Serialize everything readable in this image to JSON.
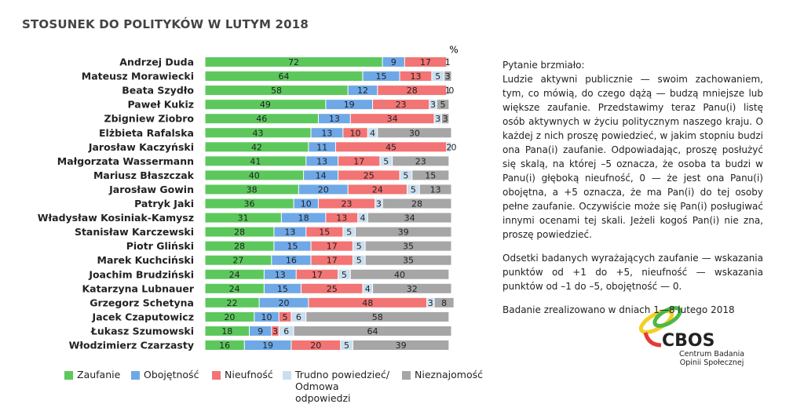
{
  "chart_data": {
    "type": "stacked-bar-horizontal",
    "title": "STOSUNEK DO POLITYKÓW  W  LUTYM 2018",
    "unit": "%",
    "categories": [
      "Andrzej Duda",
      "Mateusz Morawiecki",
      "Beata Szydło",
      "Paweł Kukiz",
      "Zbigniew Ziobro",
      "Elżbieta Rafalska",
      "Jarosław Kaczyński",
      "Małgorzata Wassermann",
      "Mariusz Błaszczak",
      "Jarosław Gowin",
      "Patryk Jaki",
      "Władysław Kosiniak-Kamysz",
      "Stanisław Karczewski",
      "Piotr Gliński",
      "Marek Kuchciński",
      "Joachim Brudziński",
      "Katarzyna Lubnauer",
      "Grzegorz Schetyna",
      "Jacek Czaputowicz",
      "Łukasz Szumowski",
      "Włodzimierz Czarzasty"
    ],
    "xlim": [
      0,
      100
    ],
    "series": [
      {
        "name": "Zaufanie",
        "color": "#5cc85c",
        "values": [
          72,
          64,
          58,
          49,
          46,
          43,
          42,
          41,
          40,
          38,
          36,
          31,
          28,
          28,
          27,
          24,
          24,
          22,
          20,
          18,
          16
        ]
      },
      {
        "name": "Obojętność",
        "color": "#6fa8e6",
        "values": [
          9,
          15,
          12,
          19,
          13,
          13,
          11,
          13,
          14,
          20,
          10,
          18,
          13,
          15,
          16,
          13,
          15,
          20,
          10,
          9,
          19
        ]
      },
      {
        "name": "Nieufność",
        "color": "#f27474",
        "values": [
          17,
          13,
          28,
          23,
          34,
          10,
          45,
          17,
          25,
          24,
          23,
          13,
          15,
          17,
          17,
          17,
          25,
          48,
          5,
          3,
          20
        ]
      },
      {
        "name": "Trudno powiedzieć/ Odmowa odpowiedzi",
        "color": "#c9dff0",
        "values": [
          1,
          5,
          1,
          3,
          3,
          4,
          2,
          5,
          5,
          5,
          3,
          4,
          5,
          5,
          5,
          5,
          4,
          3,
          6,
          6,
          5
        ]
      },
      {
        "name": "Nieznajomość",
        "color": "#a6a6a6",
        "values": [
          null,
          3,
          0,
          5,
          3,
          30,
          0,
          23,
          15,
          13,
          28,
          34,
          39,
          35,
          35,
          40,
          32,
          8,
          58,
          64,
          39
        ]
      }
    ]
  },
  "question_label": "Pytanie brzmiało:",
  "question_text": "Ludzie aktywni publicznie — swoim zachowaniem, tym, co mówią, do czego dążą — budzą mniejsze lub większe zaufanie. Przedstawimy teraz Panu(i) listę osób aktywnych w życiu politycznym naszego kraju. O każdej z nich proszę powiedzieć, w jakim stopniu budzi ona Pana(i) zaufanie. Odpowiadając, proszę posłużyć się skalą, na której –5 oznacza, że osoba ta budzi w Panu(i) głęboką nieufność, 0 — że jest ona Panu(i) obojętna, a +5 oznacza, że ma Pan(i) do tej osoby pełne zaufanie. Oczywiście może się Pan(i) posługiwać innymi ocenami tej skali. Jeżeli kogoś Pan(i) nie zna, proszę powiedzieć.",
  "note": "Odsetki badanych wyrażających zaufanie — wskazania punktów od +1 do +5, nieufność — wskazania punktów od –1 do –5, obojętność — 0.",
  "survey_date": "Badanie zrealizowano w dniach 1—8 lutego 2018",
  "logo": {
    "name": "CBOS",
    "line1": "Centrum Badania",
    "line2": "Opinii Społecznej"
  }
}
